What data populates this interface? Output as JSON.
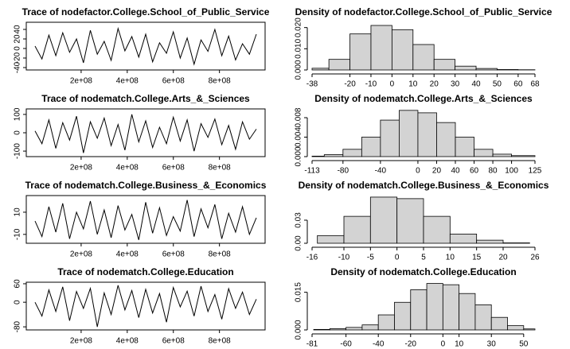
{
  "chart_data": [
    {
      "type": "line",
      "title": "Trace of nodefactor.College.School_of_Public_Service",
      "x": [
        0,
        30000000,
        60000000,
        90000000,
        120000000,
        150000000,
        180000000,
        210000000,
        240000000,
        270000000,
        300000000,
        330000000,
        360000000,
        390000000,
        420000000,
        450000000,
        480000000,
        510000000,
        540000000,
        570000000,
        600000000,
        630000000,
        660000000,
        690000000,
        720000000,
        750000000,
        780000000,
        810000000,
        840000000,
        870000000,
        900000000,
        930000000,
        960000000
      ],
      "values": [
        5,
        -22,
        28,
        -15,
        33,
        -8,
        20,
        -30,
        38,
        -12,
        15,
        -25,
        42,
        -5,
        25,
        -18,
        30,
        -28,
        12,
        -10,
        35,
        -20,
        22,
        -33,
        18,
        -6,
        40,
        -15,
        26,
        -24,
        10,
        -12,
        30
      ],
      "color": "#000000",
      "xlim": [
        -38000000,
        998000000
      ],
      "ylim": [
        -45,
        55
      ],
      "xticks": [
        {
          "value": 200000000,
          "label": "2e+08"
        },
        {
          "value": 400000000,
          "label": "4e+08"
        },
        {
          "value": 600000000,
          "label": "6e+08"
        },
        {
          "value": 800000000,
          "label": "8e+08"
        }
      ],
      "yticks": [
        -40,
        -20,
        0,
        20,
        40
      ]
    },
    {
      "type": "histogram",
      "title": "Density of nodefactor.College.School_of_Public_Service",
      "bins": [
        -38,
        -30,
        -20,
        -10,
        0,
        10,
        20,
        30,
        40,
        50,
        60,
        68
      ],
      "values": [
        0.0008,
        0.005,
        0.017,
        0.021,
        0.019,
        0.012,
        0.005,
        0.0018,
        0.0007,
        0.0002,
        0.0001
      ],
      "color": "#d3d3d3",
      "xlim": [
        -38,
        68
      ],
      "ylim": [
        0,
        0.0225
      ],
      "xticks": [
        -38,
        -20,
        -10,
        0,
        10,
        20,
        30,
        40,
        50,
        60,
        68
      ],
      "yticks": [
        {
          "value": 0,
          "label": "0.000"
        },
        {
          "value": 0.01,
          "label": "0.010"
        },
        {
          "value": 0.02,
          "label": "0.020"
        }
      ]
    },
    {
      "type": "line",
      "title": "Trace of nodematch.College.Arts_&_Sciences",
      "x": [
        0,
        30000000,
        60000000,
        90000000,
        120000000,
        150000000,
        180000000,
        210000000,
        240000000,
        270000000,
        300000000,
        330000000,
        360000000,
        390000000,
        420000000,
        450000000,
        480000000,
        510000000,
        540000000,
        570000000,
        600000000,
        630000000,
        660000000,
        690000000,
        720000000,
        750000000,
        780000000,
        810000000,
        840000000,
        870000000,
        900000000,
        930000000,
        960000000
      ],
      "values": [
        10,
        -60,
        70,
        -85,
        55,
        -40,
        90,
        -110,
        60,
        -30,
        80,
        -70,
        45,
        -95,
        100,
        -50,
        65,
        -80,
        30,
        -60,
        85,
        -45,
        70,
        -100,
        50,
        -25,
        75,
        -65,
        40,
        -90,
        60,
        -35,
        20
      ],
      "color": "#000000",
      "xlim": [
        -38000000,
        998000000
      ],
      "ylim": [
        -130,
        130
      ],
      "xticks": [
        {
          "value": 200000000,
          "label": "2e+08"
        },
        {
          "value": 400000000,
          "label": "4e+08"
        },
        {
          "value": 600000000,
          "label": "6e+08"
        },
        {
          "value": 800000000,
          "label": "8e+08"
        }
      ],
      "yticks": [
        -100,
        0,
        100
      ]
    },
    {
      "type": "histogram",
      "title": "Density of nodematch.College.Arts_&_Sciences",
      "bins": [
        -113,
        -100,
        -80,
        -60,
        -40,
        -20,
        0,
        20,
        40,
        60,
        80,
        100,
        125
      ],
      "values": [
        0.0001,
        0.0004,
        0.0015,
        0.004,
        0.0075,
        0.0095,
        0.009,
        0.007,
        0.004,
        0.0015,
        0.0005,
        0.0002
      ],
      "color": "#d3d3d3",
      "xlim": [
        -113,
        125
      ],
      "ylim": [
        0,
        0.0098
      ],
      "xticks": [
        -113,
        -80,
        -40,
        0,
        20,
        40,
        60,
        80,
        100,
        125
      ],
      "yticks": [
        {
          "value": 0,
          "label": "0.000"
        },
        {
          "value": 0.004,
          "label": "0.004"
        },
        {
          "value": 0.008,
          "label": "0.008"
        }
      ]
    },
    {
      "type": "line",
      "title": "Trace of nodematch.College.Business_&_Economics",
      "x": [
        0,
        30000000,
        60000000,
        90000000,
        120000000,
        150000000,
        180000000,
        210000000,
        240000000,
        270000000,
        300000000,
        330000000,
        360000000,
        390000000,
        420000000,
        450000000,
        480000000,
        510000000,
        540000000,
        570000000,
        600000000,
        630000000,
        660000000,
        690000000,
        720000000,
        750000000,
        780000000,
        810000000,
        840000000,
        870000000,
        900000000,
        930000000,
        960000000
      ],
      "values": [
        2,
        -12,
        15,
        -8,
        18,
        -14,
        10,
        -5,
        20,
        -10,
        12,
        -13,
        16,
        -6,
        8,
        -15,
        19,
        -9,
        14,
        -11,
        6,
        -7,
        21,
        -12,
        13,
        -4,
        17,
        -14,
        9,
        -8,
        15,
        -10,
        5
      ],
      "color": "#000000",
      "xlim": [
        -38000000,
        998000000
      ],
      "ylim": [
        -18,
        25
      ],
      "xticks": [
        {
          "value": 200000000,
          "label": "2e+08"
        },
        {
          "value": 400000000,
          "label": "4e+08"
        },
        {
          "value": 600000000,
          "label": "6e+08"
        },
        {
          "value": 800000000,
          "label": "8e+08"
        }
      ],
      "yticks": [
        -10,
        10
      ]
    },
    {
      "type": "histogram",
      "title": "Density of nodematch.College.Business_&_Economics",
      "bins": [
        -15,
        -10,
        -5,
        0,
        5,
        10,
        15,
        20,
        25
      ],
      "values": [
        0.01,
        0.035,
        0.06,
        0.058,
        0.035,
        0.012,
        0.004,
        0.0005
      ],
      "color": "#d3d3d3",
      "xlim": [
        -16,
        26
      ],
      "ylim": [
        0,
        0.062
      ],
      "xticks": [
        -16,
        -10,
        -5,
        0,
        5,
        10,
        15,
        20,
        26
      ],
      "yticks": [
        {
          "value": 0,
          "label": "0.00"
        },
        {
          "value": 0.03,
          "label": "0.03"
        }
      ]
    },
    {
      "type": "line",
      "title": "Trace of nodematch.College.Education",
      "x": [
        0,
        30000000,
        60000000,
        90000000,
        120000000,
        150000000,
        180000000,
        210000000,
        240000000,
        270000000,
        300000000,
        330000000,
        360000000,
        390000000,
        420000000,
        450000000,
        480000000,
        510000000,
        540000000,
        570000000,
        600000000,
        630000000,
        660000000,
        690000000,
        720000000,
        750000000,
        780000000,
        810000000,
        840000000,
        870000000,
        900000000,
        930000000,
        960000000
      ],
      "values": [
        0,
        -45,
        40,
        -30,
        50,
        -60,
        35,
        -20,
        45,
        -80,
        30,
        -40,
        55,
        -25,
        38,
        -50,
        42,
        -35,
        28,
        -65,
        48,
        -15,
        36,
        -45,
        52,
        -30,
        25,
        -55,
        44,
        -20,
        33,
        -40,
        10
      ],
      "color": "#000000",
      "xlim": [
        -38000000,
        998000000
      ],
      "ylim": [
        -90,
        65
      ],
      "xticks": [
        {
          "value": 200000000,
          "label": "2e+08"
        },
        {
          "value": 400000000,
          "label": "4e+08"
        },
        {
          "value": 600000000,
          "label": "6e+08"
        },
        {
          "value": 800000000,
          "label": "8e+08"
        }
      ],
      "yticks": [
        -80,
        0,
        60
      ]
    },
    {
      "type": "histogram",
      "title": "Density of nodematch.College.Education",
      "bins": [
        -80,
        -70,
        -60,
        -50,
        -40,
        -30,
        -20,
        -10,
        0,
        10,
        20,
        30,
        40,
        50,
        57
      ],
      "values": [
        0.0002,
        0.0005,
        0.001,
        0.002,
        0.006,
        0.011,
        0.016,
        0.0185,
        0.018,
        0.0145,
        0.01,
        0.005,
        0.0017,
        0.0004
      ],
      "color": "#d3d3d3",
      "xlim": [
        -81,
        57
      ],
      "ylim": [
        0,
        0.019
      ],
      "xticks": [
        -81,
        -60,
        -40,
        -20,
        0,
        10,
        30,
        50
      ],
      "yticks": [
        {
          "value": 0,
          "label": "0.000"
        },
        {
          "value": 0.015,
          "label": "0.015"
        }
      ]
    }
  ]
}
